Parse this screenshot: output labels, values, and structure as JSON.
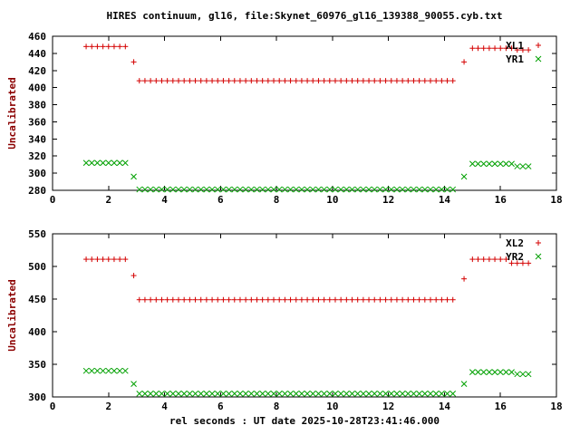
{
  "window": {
    "title": "HIRES continuum, gl16, file:Skynet_60976_gl16_139388_90055.cyb.txt",
    "xlabel": "rel seconds : UT date 2025-10-28T23:41:46.000",
    "background": "#ffffff"
  },
  "styles": {
    "text_color": "#000000",
    "ylabel_color": "#8b0000",
    "axis_color": "#000000",
    "red": "#d40000",
    "green": "#00a000"
  },
  "chart_data": [
    {
      "type": "scatter",
      "panel": "top",
      "ylabel": "Uncalibrated",
      "xlim": [
        0,
        18
      ],
      "ylim": [
        280,
        460
      ],
      "xticks": [
        0,
        2,
        4,
        6,
        8,
        10,
        12,
        14,
        16,
        18
      ],
      "yticks": [
        280,
        300,
        320,
        340,
        360,
        380,
        400,
        420,
        440,
        460
      ],
      "grid": false,
      "legend_position": "top-right",
      "segments_format": "[x_start, x_end, x_step, y]",
      "series": [
        {
          "name": "XL1",
          "marker": "plus",
          "color": "#d40000",
          "segments": [
            [
              1.2,
              2.6,
              0.2,
              448
            ],
            [
              2.9,
              2.9,
              0.2,
              430
            ],
            [
              3.1,
              14.3,
              0.2,
              408
            ],
            [
              14.7,
              14.7,
              0.2,
              430
            ],
            [
              15.0,
              16.4,
              0.2,
              446
            ],
            [
              16.6,
              17.0,
              0.2,
              444
            ]
          ]
        },
        {
          "name": "YR1",
          "marker": "cross",
          "color": "#00a000",
          "segments": [
            [
              1.2,
              2.6,
              0.2,
              312
            ],
            [
              2.9,
              2.9,
              0.2,
              296
            ],
            [
              3.1,
              14.3,
              0.2,
              281
            ],
            [
              14.7,
              14.7,
              0.2,
              296
            ],
            [
              15.0,
              16.4,
              0.2,
              311
            ],
            [
              16.6,
              17.0,
              0.2,
              308
            ]
          ]
        }
      ]
    },
    {
      "type": "scatter",
      "panel": "bottom",
      "ylabel": "Uncalibrated",
      "xlim": [
        0,
        18
      ],
      "ylim": [
        300,
        550
      ],
      "xticks": [
        0,
        2,
        4,
        6,
        8,
        10,
        12,
        14,
        16,
        18
      ],
      "yticks": [
        300,
        350,
        400,
        450,
        500,
        550
      ],
      "grid": false,
      "legend_position": "top-right",
      "segments_format": "[x_start, x_end, x_step, y]",
      "series": [
        {
          "name": "XL2",
          "marker": "plus",
          "color": "#d40000",
          "segments": [
            [
              1.2,
              2.6,
              0.2,
              511
            ],
            [
              2.9,
              2.9,
              0.2,
              486
            ],
            [
              3.1,
              14.3,
              0.2,
              449
            ],
            [
              14.7,
              14.7,
              0.2,
              481
            ],
            [
              15.0,
              16.2,
              0.2,
              511
            ],
            [
              16.4,
              17.0,
              0.2,
              505
            ]
          ]
        },
        {
          "name": "YR2",
          "marker": "cross",
          "color": "#00a000",
          "segments": [
            [
              1.2,
              2.6,
              0.2,
              340
            ],
            [
              2.9,
              2.9,
              0.2,
              320
            ],
            [
              3.1,
              14.3,
              0.2,
              305
            ],
            [
              14.7,
              14.7,
              0.2,
              320
            ],
            [
              15.0,
              16.4,
              0.2,
              338
            ],
            [
              16.6,
              17.0,
              0.2,
              335
            ]
          ]
        }
      ]
    }
  ]
}
